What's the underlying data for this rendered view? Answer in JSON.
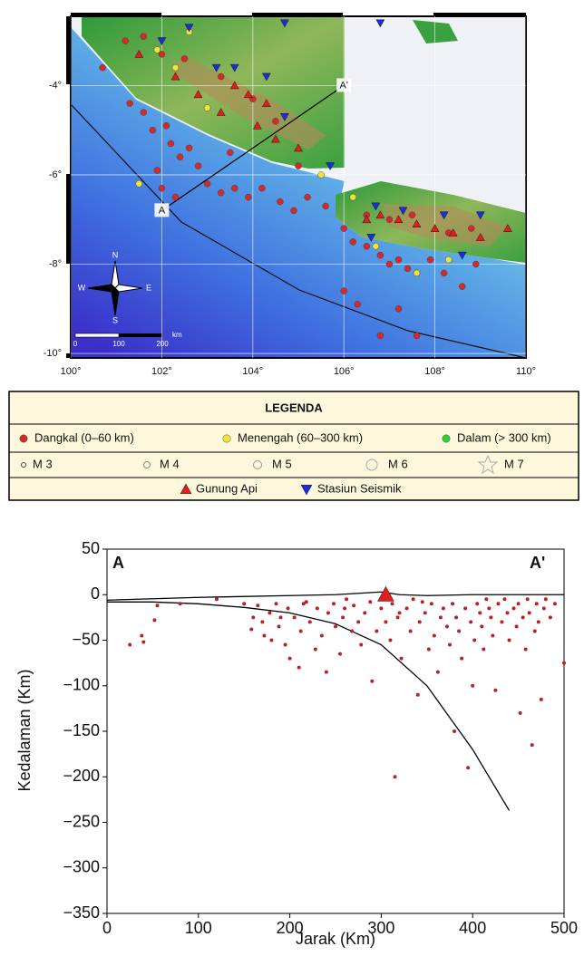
{
  "chart_data": [
    {
      "type": "map",
      "xlim": [
        100,
        110
      ],
      "ylim": [
        -10.1,
        -2.45
      ],
      "xticks": [
        {
          "value": 100,
          "label": "100°"
        },
        {
          "value": 102,
          "label": "102°"
        },
        {
          "value": 104,
          "label": "104°"
        },
        {
          "value": 106,
          "label": "106°"
        },
        {
          "value": 108,
          "label": "108°"
        },
        {
          "value": 110,
          "label": "110°"
        }
      ],
      "yticks": [
        {
          "value": -4,
          "label": "-4°"
        },
        {
          "value": -6,
          "label": "-6°"
        },
        {
          "value": -8,
          "label": "-8°"
        },
        {
          "value": -10,
          "label": "-10°"
        }
      ],
      "grid": true,
      "compass": [
        "N",
        "S",
        "W",
        "E"
      ],
      "scale_labels": [
        "0",
        "100",
        "200",
        "km"
      ],
      "section": {
        "labels": [
          "A",
          "A'"
        ],
        "x": [
          102.0,
          106.0
        ],
        "y": [
          -6.8,
          -4.0
        ]
      },
      "series": [
        {
          "name": "Dangkal (0–60 km)",
          "color": "#d42a2a",
          "marker": "circle",
          "x": [
            101.3,
            101.6,
            101.8,
            102.1,
            102.2,
            102.4,
            102.6,
            102.8,
            101.9,
            102.0,
            102.3,
            103.0,
            103.3,
            103.6,
            103.9,
            104.2,
            104.6,
            104.9,
            105.2,
            105.6,
            106.0,
            106.2,
            106.5,
            106.8,
            107.0,
            107.2,
            107.4,
            107.6,
            107.9,
            108.2,
            108.6,
            108.9,
            106.0,
            106.3,
            106.8,
            107.6,
            107.2,
            101.2,
            101.6,
            102.0,
            102.5,
            103.3,
            104.0,
            104.5,
            103.5,
            105.0,
            106.5,
            107.0,
            107.5,
            108.3,
            108.8,
            100.7
          ],
          "y": [
            -4.4,
            -4.6,
            -5.0,
            -4.9,
            -5.3,
            -5.6,
            -5.4,
            -5.8,
            -5.9,
            -6.3,
            -6.5,
            -6.2,
            -6.4,
            -6.3,
            -6.5,
            -6.3,
            -6.6,
            -6.8,
            -6.5,
            -6.7,
            -7.2,
            -7.5,
            -7.6,
            -7.8,
            -8.0,
            -7.9,
            -8.1,
            -8.2,
            -7.9,
            -8.2,
            -8.5,
            -8.0,
            -8.6,
            -8.9,
            -9.6,
            -9.6,
            -9.0,
            -3.0,
            -2.9,
            -3.3,
            -3.4,
            -3.8,
            -4.3,
            -4.8,
            -5.5,
            -5.8,
            -6.9,
            -7.0,
            -6.9,
            -7.3,
            -7.2,
            -3.6
          ]
        },
        {
          "name": "Menengah (60–300 km)",
          "color": "#f2e33a",
          "marker": "circle",
          "x": [
            101.5,
            101.9,
            102.3,
            103.0,
            105.5,
            106.7,
            107.6,
            108.3,
            106.2,
            102.6
          ],
          "y": [
            -6.2,
            -3.2,
            -3.6,
            -4.5,
            -6.0,
            -7.6,
            -8.2,
            -7.9,
            -6.5,
            -2.8
          ]
        },
        {
          "name": "Dalam (> 300 km)",
          "color": "#2fd23a",
          "marker": "circle",
          "x": [],
          "y": []
        },
        {
          "name": "Gunung Api",
          "color": "#e01e1e",
          "marker": "triangle",
          "x": [
            101.5,
            102.3,
            102.8,
            103.3,
            103.6,
            104.1,
            104.5,
            105.0,
            106.5,
            106.8,
            107.2,
            107.6,
            108.0,
            108.4,
            109.0,
            109.6,
            104.3,
            103.9
          ],
          "y": [
            -3.3,
            -3.8,
            -4.2,
            -4.6,
            -4.0,
            -4.9,
            -5.2,
            -5.4,
            -7.0,
            -6.9,
            -7.0,
            -7.1,
            -7.2,
            -7.3,
            -7.4,
            -7.2,
            -4.4,
            -4.2
          ]
        },
        {
          "name": "Stasiun Seismik",
          "color": "#1a2fd8",
          "marker": "inverted-triangle",
          "x": [
            102.6,
            103.6,
            104.3,
            104.7,
            104.7,
            103.2,
            106.8,
            105.7,
            106.7,
            107.3,
            108.2,
            109.0,
            108.6,
            106.6,
            102.0
          ],
          "y": [
            -2.7,
            -3.6,
            -3.8,
            -4.7,
            -2.6,
            -3.6,
            -2.6,
            -5.8,
            -6.7,
            -6.8,
            -6.9,
            -6.9,
            -7.8,
            -7.4,
            -3.0
          ]
        }
      ]
    },
    {
      "type": "scatter",
      "xlabel": "Jarak (Km)",
      "ylabel": "Kedalaman (Km)",
      "annotations": [
        "A",
        "A'"
      ],
      "xlim": [
        0,
        500
      ],
      "ylim": [
        -350,
        50
      ],
      "xticks": [
        0,
        100,
        200,
        300,
        400,
        500
      ],
      "yticks": [
        50,
        0,
        {
          "value": -50,
          "label": "−50"
        },
        {
          "value": -100,
          "label": "−100"
        },
        {
          "value": -150,
          "label": "−150"
        },
        {
          "value": -200,
          "label": "−200"
        },
        {
          "value": -250,
          "label": "−250"
        },
        {
          "value": -300,
          "label": "−300"
        },
        {
          "value": -350,
          "label": "−350"
        }
      ],
      "lines": [
        {
          "color": "#000000",
          "x": [
            0,
            100,
            200,
            250,
            300,
            320,
            350,
            400,
            500
          ],
          "y": [
            -6,
            -3,
            -1,
            0,
            3,
            0,
            -1,
            0,
            0
          ]
        },
        {
          "color": "#000000",
          "x": [
            0,
            50,
            100,
            150,
            200,
            250,
            300,
            350,
            400,
            440
          ],
          "y": [
            -8,
            -8,
            -10,
            -14,
            -20,
            -32,
            -55,
            -100,
            -170,
            -237
          ]
        }
      ],
      "series": [
        {
          "color": "#b82222",
          "marker": "circle",
          "x": [
            25,
            38,
            40,
            52,
            55,
            80,
            120,
            150,
            158,
            160,
            165,
            170,
            172,
            178,
            180,
            185,
            188,
            195,
            198,
            200,
            205,
            210,
            212,
            218,
            222,
            228,
            230,
            235,
            240,
            242,
            248,
            250,
            255,
            258,
            262,
            268,
            270,
            275,
            278,
            282,
            288,
            290,
            295,
            300,
            305,
            310,
            312,
            315,
            318,
            322,
            328,
            332,
            335,
            340,
            342,
            348,
            352,
            355,
            358,
            362,
            365,
            368,
            372,
            375,
            378,
            380,
            382,
            385,
            388,
            392,
            395,
            398,
            400,
            402,
            405,
            408,
            410,
            412,
            415,
            418,
            420,
            422,
            425,
            428,
            432,
            435,
            438,
            440,
            445,
            448,
            450,
            452,
            455,
            458,
            460,
            462,
            465,
            468,
            470,
            472,
            475,
            478,
            480,
            485,
            490,
            500,
            320,
            345,
            260,
            190,
            215
          ],
          "y": [
            -55,
            -45,
            -52,
            -28,
            -12,
            -10,
            -5,
            -10,
            -38,
            -25,
            -12,
            -30,
            -45,
            -20,
            -50,
            -10,
            -35,
            -55,
            -15,
            -70,
            -25,
            -80,
            -40,
            -8,
            -30,
            -60,
            -15,
            -45,
            -85,
            -20,
            -10,
            -35,
            -65,
            -25,
            -5,
            -40,
            -12,
            -30,
            -55,
            -20,
            -8,
            -95,
            -40,
            -15,
            -30,
            -50,
            -10,
            -200,
            -25,
            -70,
            -15,
            -40,
            -5,
            -110,
            -30,
            -20,
            -60,
            -10,
            -45,
            -85,
            -25,
            -15,
            -35,
            -55,
            -10,
            -150,
            -25,
            -40,
            -70,
            -15,
            -190,
            -30,
            -100,
            -50,
            -10,
            -20,
            -35,
            -60,
            -5,
            -15,
            -25,
            -45,
            -105,
            -10,
            -30,
            -5,
            -20,
            -50,
            -15,
            -35,
            -10,
            -130,
            -25,
            -60,
            -5,
            -20,
            -165,
            -40,
            -10,
            -30,
            -115,
            -15,
            -5,
            -25,
            -10,
            -75,
            -20,
            -8,
            -15,
            -25,
            -10
          ]
        },
        {
          "color": "#e01e1e",
          "marker": "triangle",
          "x": [
            305
          ],
          "y": [
            0
          ]
        }
      ]
    }
  ],
  "legend": {
    "title": "LEGENDA",
    "magnitudes": [
      "M 3",
      "M 4",
      "M 5",
      "M 6",
      "M 7"
    ]
  }
}
